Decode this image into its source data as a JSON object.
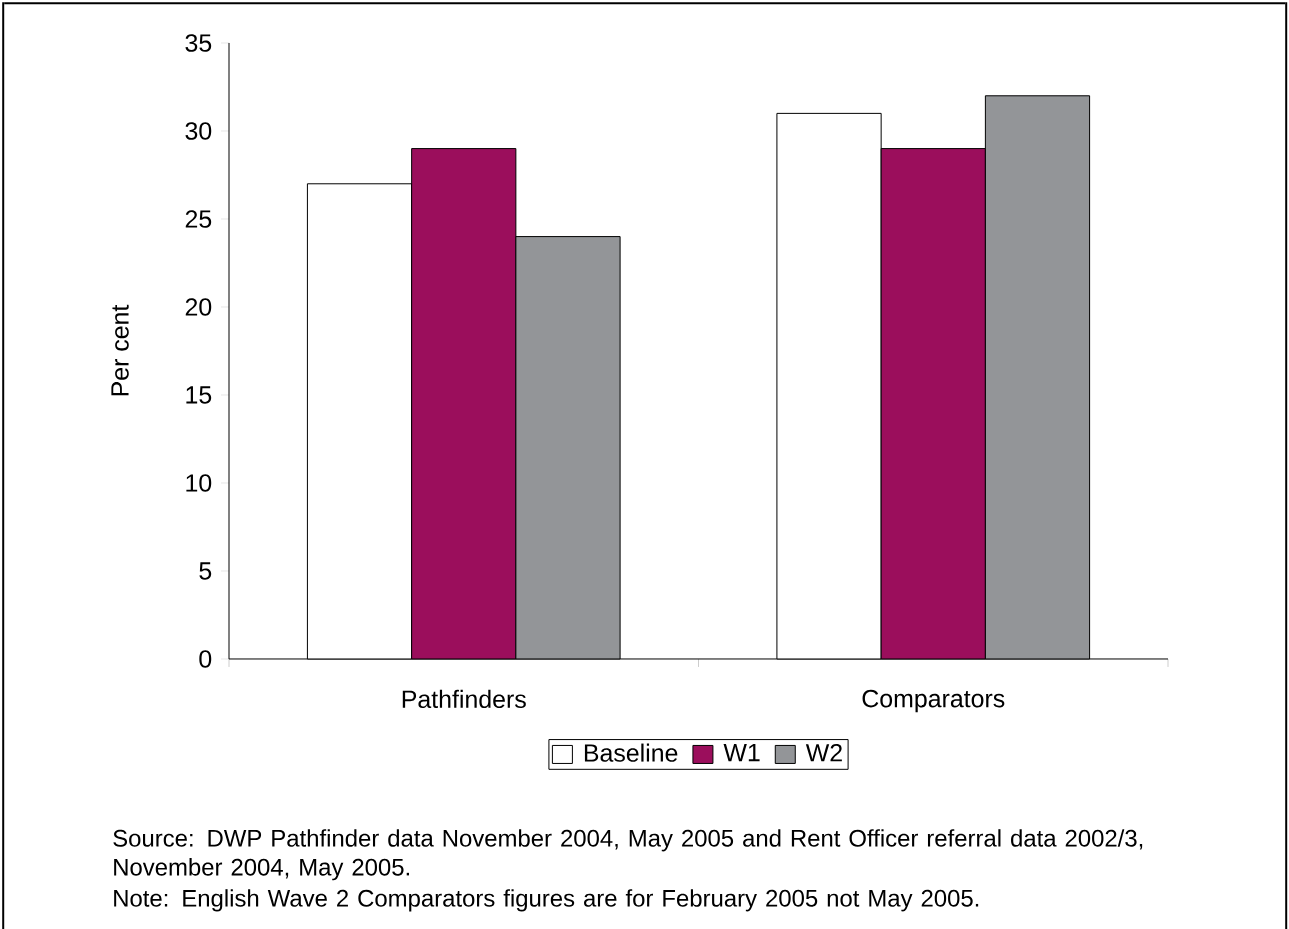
{
  "chart_data": {
    "type": "bar",
    "ylabel": "Per cent",
    "categories": [
      "Pathfinders",
      "Comparators"
    ],
    "series": [
      {
        "name": "Baseline",
        "color": "#ffffff",
        "values": [
          27,
          31
        ]
      },
      {
        "name": "W1",
        "color": "#9b0e5c",
        "values": [
          29,
          29
        ]
      },
      {
        "name": "W2",
        "color": "#939598",
        "values": [
          24,
          32
        ]
      }
    ],
    "ylim": [
      0,
      35
    ],
    "yticks": [
      0,
      5,
      10,
      15,
      20,
      25,
      30,
      35
    ],
    "grid": false,
    "legend": "bottom",
    "annotations": [
      "Source: DWP Pathfinder data November 2004, May 2005 and Rent Officer referral data 2002/3, November 2004, May 2005.",
      "Note: English Wave 2 Comparators figures are for February 2005 not May 2005."
    ]
  }
}
